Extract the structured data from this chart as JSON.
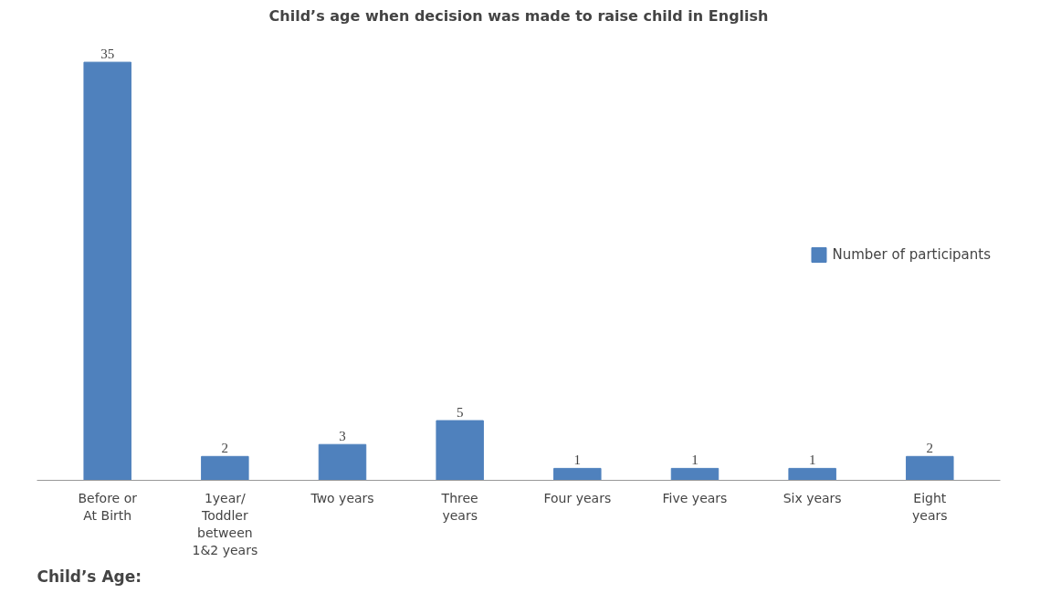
{
  "chart_data": {
    "type": "bar",
    "title": "Child’s age when decision was made to raise child in English",
    "xlabel": "Child’s Age:",
    "categories": [
      "Before or At Birth",
      "1year/ Toddler between 1&2 years",
      "Two years",
      "Three years",
      "Four years",
      "Five years",
      "Six years",
      "Eight years"
    ],
    "series": [
      {
        "name": "Number of participants",
        "color": "#4f81bd",
        "values": [
          35,
          2,
          3,
          5,
          1,
          1,
          1,
          2
        ]
      }
    ],
    "data_labels": true,
    "legend": "right",
    "grid": false
  }
}
